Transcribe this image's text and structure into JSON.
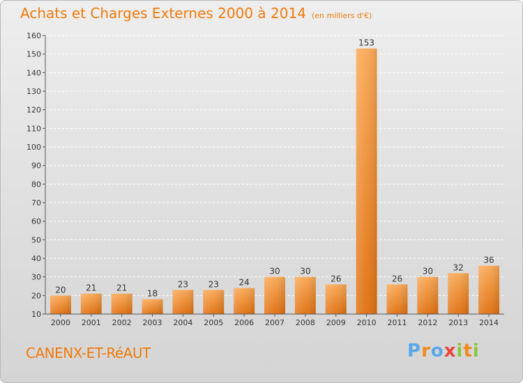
{
  "header": {
    "title": "Achats et Charges Externes 2000 à 2014",
    "subtitle": "(en milliers d'€)"
  },
  "footer": {
    "commune": "CANENX-ET-RéAUT",
    "logo_text": "Proxiti"
  },
  "colors": {
    "title": "#f07a0a",
    "bar_light": "#f7a24e",
    "bar_dark": "#e27410",
    "grid": "#ffffff",
    "axis": "#555555"
  },
  "chart_data": {
    "type": "bar",
    "title": "Achats et Charges Externes 2000 à 2014",
    "subtitle": "(en milliers d'€)",
    "categories": [
      "2000",
      "2001",
      "2002",
      "2003",
      "2004",
      "2005",
      "2006",
      "2007",
      "2008",
      "2009",
      "2010",
      "2011",
      "2012",
      "2013",
      "2014"
    ],
    "values": [
      20,
      21,
      21,
      18,
      23,
      23,
      24,
      30,
      30,
      26,
      153,
      26,
      30,
      32,
      36
    ],
    "ylim": [
      10,
      160
    ],
    "yticks": [
      10,
      20,
      30,
      40,
      50,
      60,
      70,
      80,
      90,
      100,
      110,
      120,
      130,
      140,
      150,
      160
    ],
    "grid": "dashed-horizontal",
    "legend": "none"
  }
}
